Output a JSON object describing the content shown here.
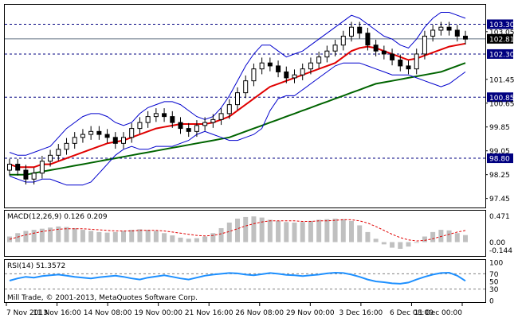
{
  "chart_data": [
    {
      "type": "line",
      "title": "",
      "ylim": [
        97.2,
        103.9
      ],
      "yticks": [
        "103.05",
        "101.45",
        "100.65",
        "99.85",
        "99.05",
        "98.25",
        "97.45"
      ],
      "levels": [
        {
          "value": 103.3,
          "label": "103.30",
          "style": "dashed"
        },
        {
          "value": 102.81,
          "label": "102.81",
          "style": "solid",
          "current": true
        },
        {
          "value": 102.3,
          "label": "102.30",
          "style": "dashed"
        },
        {
          "value": 100.85,
          "label": "100.85",
          "style": "dashed"
        },
        {
          "value": 98.8,
          "label": "98.80",
          "style": "dashed"
        }
      ],
      "close": [
        98.6,
        98.4,
        98.1,
        98.3,
        98.7,
        98.9,
        99.1,
        99.3,
        99.5,
        99.6,
        99.7,
        99.6,
        99.5,
        99.3,
        99.5,
        99.8,
        100.0,
        100.2,
        100.3,
        100.2,
        100.0,
        99.8,
        99.7,
        99.9,
        100.0,
        100.1,
        100.3,
        100.6,
        101.0,
        101.4,
        101.8,
        102.0,
        101.9,
        101.7,
        101.5,
        101.6,
        101.8,
        102.0,
        102.2,
        102.4,
        102.6,
        102.9,
        103.2,
        103.0,
        102.6,
        102.4,
        102.3,
        102.1,
        101.9,
        101.8,
        102.3,
        102.9,
        103.1,
        103.2,
        103.1,
        102.9,
        102.8
      ],
      "series": [
        {
          "values": [
            98.6,
            98.5,
            98.5,
            98.5,
            98.6,
            98.6,
            98.7,
            98.8,
            98.9,
            99.0,
            99.1,
            99.2,
            99.3,
            99.35,
            99.4,
            99.5,
            99.6,
            99.7,
            99.8,
            99.85,
            99.9,
            99.95,
            99.95,
            99.95,
            99.95,
            100.0,
            100.1,
            100.2,
            100.4,
            100.6,
            100.8,
            101.0,
            101.2,
            101.3,
            101.4,
            101.5,
            101.6,
            101.7,
            101.8,
            101.9,
            102.0,
            102.2,
            102.4,
            102.5,
            102.55,
            102.5,
            102.4,
            102.3,
            102.2,
            102.1,
            102.15,
            102.25,
            102.35,
            102.45,
            102.55,
            102.6,
            102.65
          ]
        },
        {
          "values": [
            98.25,
            98.25,
            98.25,
            98.3,
            98.35,
            98.4,
            98.45,
            98.5,
            98.55,
            98.6,
            98.65,
            98.7,
            98.75,
            98.8,
            98.85,
            98.9,
            98.95,
            99.0,
            99.05,
            99.1,
            99.15,
            99.2,
            99.25,
            99.3,
            99.35,
            99.4,
            99.45,
            99.5,
            99.6,
            99.7,
            99.8,
            99.9,
            100.0,
            100.1,
            100.2,
            100.3,
            100.4,
            100.5,
            100.6,
            100.7,
            100.8,
            100.9,
            101.0,
            101.1,
            101.2,
            101.3,
            101.35,
            101.4,
            101.45,
            101.5,
            101.55,
            101.6,
            101.65,
            101.7,
            101.8,
            101.9,
            102.0
          ]
        },
        {
          "values": [
            99.0,
            98.9,
            98.9,
            99.0,
            99.1,
            99.2,
            99.5,
            99.8,
            100.0,
            100.2,
            100.3,
            100.3,
            100.2,
            100.0,
            99.9,
            100.0,
            100.3,
            100.5,
            100.6,
            100.7,
            100.7,
            100.6,
            100.4,
            100.2,
            100.1,
            100.2,
            100.5,
            100.9,
            101.4,
            101.9,
            102.3,
            102.6,
            102.6,
            102.4,
            102.2,
            102.3,
            102.4,
            102.6,
            102.8,
            103.0,
            103.2,
            103.4,
            103.6,
            103.5,
            103.3,
            103.1,
            102.9,
            102.8,
            102.6,
            102.5,
            102.8,
            103.2,
            103.5,
            103.7,
            103.7,
            103.6,
            103.5
          ]
        },
        {
          "values": [
            98.2,
            98.1,
            98.0,
            98.0,
            98.1,
            98.1,
            98.0,
            97.9,
            97.9,
            97.9,
            98.0,
            98.3,
            98.6,
            98.9,
            99.1,
            99.2,
            99.1,
            99.1,
            99.2,
            99.2,
            99.2,
            99.3,
            99.4,
            99.6,
            99.7,
            99.6,
            99.5,
            99.4,
            99.4,
            99.5,
            99.6,
            99.8,
            100.4,
            100.8,
            100.9,
            100.9,
            101.1,
            101.3,
            101.5,
            101.7,
            101.9,
            102.0,
            102.0,
            102.0,
            101.9,
            101.8,
            101.7,
            101.6,
            101.6,
            101.6,
            101.5,
            101.4,
            101.3,
            101.2,
            101.3,
            101.5,
            101.7
          ]
        }
      ]
    },
    {
      "type": "bar",
      "title": "MACD(12,26,9) 0.126 0.209",
      "ylim": [
        -0.22,
        0.52
      ],
      "yticks": [
        "0.471",
        "0.00",
        "-0.144"
      ],
      "values": [
        0.1,
        0.16,
        0.2,
        0.22,
        0.24,
        0.26,
        0.28,
        0.27,
        0.25,
        0.22,
        0.2,
        0.18,
        0.17,
        0.18,
        0.2,
        0.22,
        0.23,
        0.22,
        0.2,
        0.16,
        0.12,
        0.08,
        0.06,
        0.07,
        0.1,
        0.16,
        0.25,
        0.35,
        0.42,
        0.45,
        0.46,
        0.44,
        0.4,
        0.38,
        0.36,
        0.35,
        0.36,
        0.38,
        0.4,
        0.41,
        0.42,
        0.41,
        0.38,
        0.3,
        0.18,
        0.06,
        -0.04,
        -0.1,
        -0.12,
        -0.08,
        0.0,
        0.1,
        0.18,
        0.22,
        0.21,
        0.16,
        0.126
      ],
      "signal": [
        0.05,
        0.09,
        0.13,
        0.16,
        0.19,
        0.21,
        0.23,
        0.24,
        0.24,
        0.24,
        0.23,
        0.22,
        0.21,
        0.2,
        0.2,
        0.2,
        0.21,
        0.21,
        0.21,
        0.2,
        0.18,
        0.16,
        0.14,
        0.12,
        0.11,
        0.12,
        0.15,
        0.19,
        0.24,
        0.29,
        0.33,
        0.36,
        0.38,
        0.38,
        0.38,
        0.38,
        0.37,
        0.37,
        0.38,
        0.38,
        0.39,
        0.4,
        0.4,
        0.38,
        0.34,
        0.28,
        0.21,
        0.14,
        0.08,
        0.04,
        0.02,
        0.03,
        0.06,
        0.1,
        0.14,
        0.18,
        0.209
      ]
    },
    {
      "type": "line",
      "title": "RSI(14) 51.3572",
      "ylim": [
        0,
        100
      ],
      "yticks": [
        "100",
        "70",
        "50",
        "30",
        "0"
      ],
      "levels": [
        70,
        30
      ],
      "values": [
        52,
        58,
        62,
        60,
        64,
        66,
        68,
        65,
        62,
        60,
        58,
        61,
        63,
        65,
        62,
        58,
        55,
        60,
        63,
        66,
        62,
        58,
        55,
        60,
        65,
        68,
        70,
        72,
        71,
        68,
        66,
        69,
        72,
        70,
        67,
        66,
        64,
        66,
        68,
        71,
        73,
        72,
        68,
        62,
        55,
        50,
        48,
        45,
        44,
        47,
        55,
        62,
        68,
        72,
        73,
        65,
        51.36
      ]
    }
  ],
  "time_axis": [
    "7 Nov 2013",
    "11 Nov 16:00",
    "14 Nov 08:00",
    "19 Nov 00:00",
    "21 Nov 16:00",
    "26 Nov 08:00",
    "29 Nov 00:00",
    "3 Dec 16:00",
    "6 Dec 08:00",
    "11 Dec 00:00"
  ],
  "copyright": "Mill Trade, © 2001-2013, MetaQuotes Software Corp.",
  "colors": {
    "up_candle": "#000000",
    "down_candle": "#000000",
    "ma_fast": "#e00000",
    "ma_slow": "#006400",
    "bollinger": "#0000cd",
    "macd_hist": "#c0c0c0",
    "macd_signal": "#e00000",
    "rsi": "#1e90ff",
    "grid_level": "#000080",
    "current_price_box": "#000000"
  }
}
